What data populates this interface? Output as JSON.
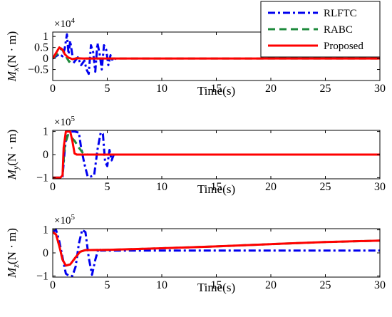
{
  "chart_data": [
    {
      "type": "line",
      "ylabel_symbol": "M",
      "ylabel_subscript": "x",
      "ylabel_unit": "(N · m)",
      "multiplier_base": "×10",
      "multiplier_exp": "4",
      "xlabel": "Time(s)",
      "xlim": [
        0,
        30
      ],
      "ylim": [
        -1,
        1.2
      ],
      "xticks": [
        "0",
        "5",
        "10",
        "15",
        "20",
        "25",
        "30"
      ],
      "yticks": [
        {
          "v": 1,
          "label": "1"
        },
        {
          "v": 0.5,
          "label": "0.5"
        },
        {
          "v": 0,
          "label": "0"
        },
        {
          "v": -0.5,
          "label": "−0.5"
        }
      ],
      "series": [
        {
          "name": "RLFTC",
          "color": "#0000ee",
          "dash": "dashdot",
          "x": [
            0,
            0.3,
            0.6,
            0.9,
            1.1,
            1.3,
            1.45,
            1.6,
            1.9,
            2.3,
            2.6,
            2.9,
            3.1,
            3.3,
            3.5,
            3.7,
            3.9,
            4.1,
            4.3,
            4.5,
            4.7,
            4.9,
            5.1,
            5.3,
            5.5,
            5.8
          ],
          "y": [
            0,
            0.1,
            0.2,
            0.1,
            0.45,
            1.1,
            0.2,
            0.8,
            -0.2,
            0.05,
            -0.3,
            -0.1,
            -0.5,
            -0.7,
            0.6,
            0.3,
            -0.6,
            0.7,
            0.2,
            -0.5,
            0.6,
            0.4,
            -0.3,
            0.15,
            -0.1,
            0
          ]
        },
        {
          "name": "RABC",
          "color": "#1e8a3c",
          "dash": "dash",
          "x": [
            0,
            0.4,
            0.8,
            1.0,
            1.2,
            1.5,
            1.8,
            2.2,
            2.6,
            3.0,
            30
          ],
          "y": [
            0,
            0.2,
            0.45,
            0.3,
            0.1,
            -0.15,
            -0.05,
            0.02,
            0,
            0,
            0
          ]
        },
        {
          "name": "Proposed",
          "color": "#ff0000",
          "dash": "solid",
          "x": [
            0,
            0.3,
            0.6,
            0.9,
            1.1,
            1.4,
            1.8,
            2.2,
            2.8,
            4,
            30
          ],
          "y": [
            0,
            0.25,
            0.5,
            0.4,
            0.2,
            0.05,
            -0.03,
            0.01,
            0,
            0,
            0
          ]
        }
      ]
    },
    {
      "type": "line",
      "ylabel_symbol": "M",
      "ylabel_subscript": "y",
      "ylabel_unit": "(N · m)",
      "multiplier_base": "×10",
      "multiplier_exp": "5",
      "xlabel": "Time(s)",
      "xlim": [
        0,
        30
      ],
      "ylim": [
        -1.05,
        1.05
      ],
      "xticks": [
        "0",
        "5",
        "10",
        "15",
        "20",
        "25",
        "30"
      ],
      "yticks": [
        {
          "v": 1,
          "label": "1"
        },
        {
          "v": 0,
          "label": "0"
        },
        {
          "v": -1,
          "label": "−1"
        }
      ],
      "series": [
        {
          "name": "RLFTC",
          "color": "#0000ee",
          "dash": "dashdot",
          "x": [
            0,
            0.7,
            0.9,
            1.1,
            1.3,
            1.6,
            2.0,
            2.4,
            2.6,
            2.9,
            3.2,
            3.5,
            3.8,
            4.1,
            4.4,
            4.6,
            4.8,
            5.0,
            5.2,
            5.4,
            5.6
          ],
          "y": [
            -1,
            -1,
            -0.95,
            0.2,
            1,
            1,
            1,
            0.95,
            0.3,
            -0.4,
            -0.95,
            -0.95,
            -0.9,
            0.2,
            0.95,
            0.9,
            -0.3,
            -0.5,
            0.2,
            -0.25,
            0
          ]
        },
        {
          "name": "RABC",
          "color": "#1e8a3c",
          "dash": "dash",
          "x": [
            0,
            0.7,
            0.9,
            1.1,
            1.4,
            1.7,
            2.0,
            2.4,
            2.8,
            3.2,
            30
          ],
          "y": [
            -1,
            -1,
            -0.9,
            0.4,
            0.85,
            0.75,
            0.6,
            0.3,
            0.05,
            0,
            0
          ]
        },
        {
          "name": "Proposed",
          "color": "#ff0000",
          "dash": "solid",
          "x": [
            0,
            0.7,
            0.9,
            1.0,
            1.2,
            1.6,
            1.8,
            2.0,
            2.2,
            30
          ],
          "y": [
            -1,
            -1,
            -0.9,
            0.3,
            1,
            1,
            0.6,
            0.05,
            0,
            0
          ]
        }
      ]
    },
    {
      "type": "line",
      "ylabel_symbol": "M",
      "ylabel_subscript": "z",
      "ylabel_unit": "(N · m)",
      "multiplier_base": "×10",
      "multiplier_exp": "5",
      "xlabel": "Time(s)",
      "xlim": [
        0,
        30
      ],
      "ylim": [
        -1.05,
        1.05
      ],
      "xticks": [
        "0",
        "5",
        "10",
        "15",
        "20",
        "25",
        "30"
      ],
      "yticks": [
        {
          "v": 1,
          "label": "1"
        },
        {
          "v": 0,
          "label": "0"
        },
        {
          "v": -1,
          "label": "−1"
        }
      ],
      "series": [
        {
          "name": "RLFTC",
          "color": "#0000ee",
          "dash": "dashdot",
          "x": [
            0,
            0.3,
            0.6,
            0.9,
            1.2,
            1.5,
            1.8,
            2.1,
            2.4,
            2.7,
            3.0,
            3.3,
            3.6,
            3.9,
            4.2,
            4.4,
            30
          ],
          "y": [
            0.9,
            1,
            0.5,
            -0.2,
            -0.9,
            -1,
            -1,
            -0.6,
            0.4,
            1,
            0.9,
            -0.2,
            -0.95,
            -0.3,
            0.2,
            0.1,
            0.1
          ]
        },
        {
          "name": "RABC",
          "color": "#1e8a3c",
          "dash": "dash",
          "x": [
            0,
            0.3,
            0.6,
            0.9,
            1.2,
            1.6,
            2.0,
            2.5,
            3.0,
            5,
            10,
            15,
            20,
            25,
            30
          ],
          "y": [
            0.9,
            0.8,
            0.3,
            -0.3,
            -0.55,
            -0.5,
            -0.25,
            0.05,
            0.12,
            0.13,
            0.2,
            0.28,
            0.38,
            0.47,
            0.53
          ]
        },
        {
          "name": "Proposed",
          "color": "#ff0000",
          "dash": "solid",
          "x": [
            0,
            0.3,
            0.6,
            0.9,
            1.2,
            1.6,
            2.0,
            2.5,
            3.0,
            5,
            10,
            15,
            20,
            25,
            30
          ],
          "y": [
            0.9,
            0.8,
            0.3,
            -0.3,
            -0.55,
            -0.5,
            -0.25,
            0.05,
            0.12,
            0.13,
            0.2,
            0.28,
            0.38,
            0.47,
            0.53
          ]
        }
      ]
    }
  ],
  "legend": {
    "placement": "top-right",
    "items": [
      {
        "label": "RLFTC",
        "color": "#0000ee",
        "dash": "dashdot"
      },
      {
        "label": "RABC",
        "color": "#1e8a3c",
        "dash": "dash"
      },
      {
        "label": "Proposed",
        "color": "#ff0000",
        "dash": "solid"
      }
    ]
  }
}
